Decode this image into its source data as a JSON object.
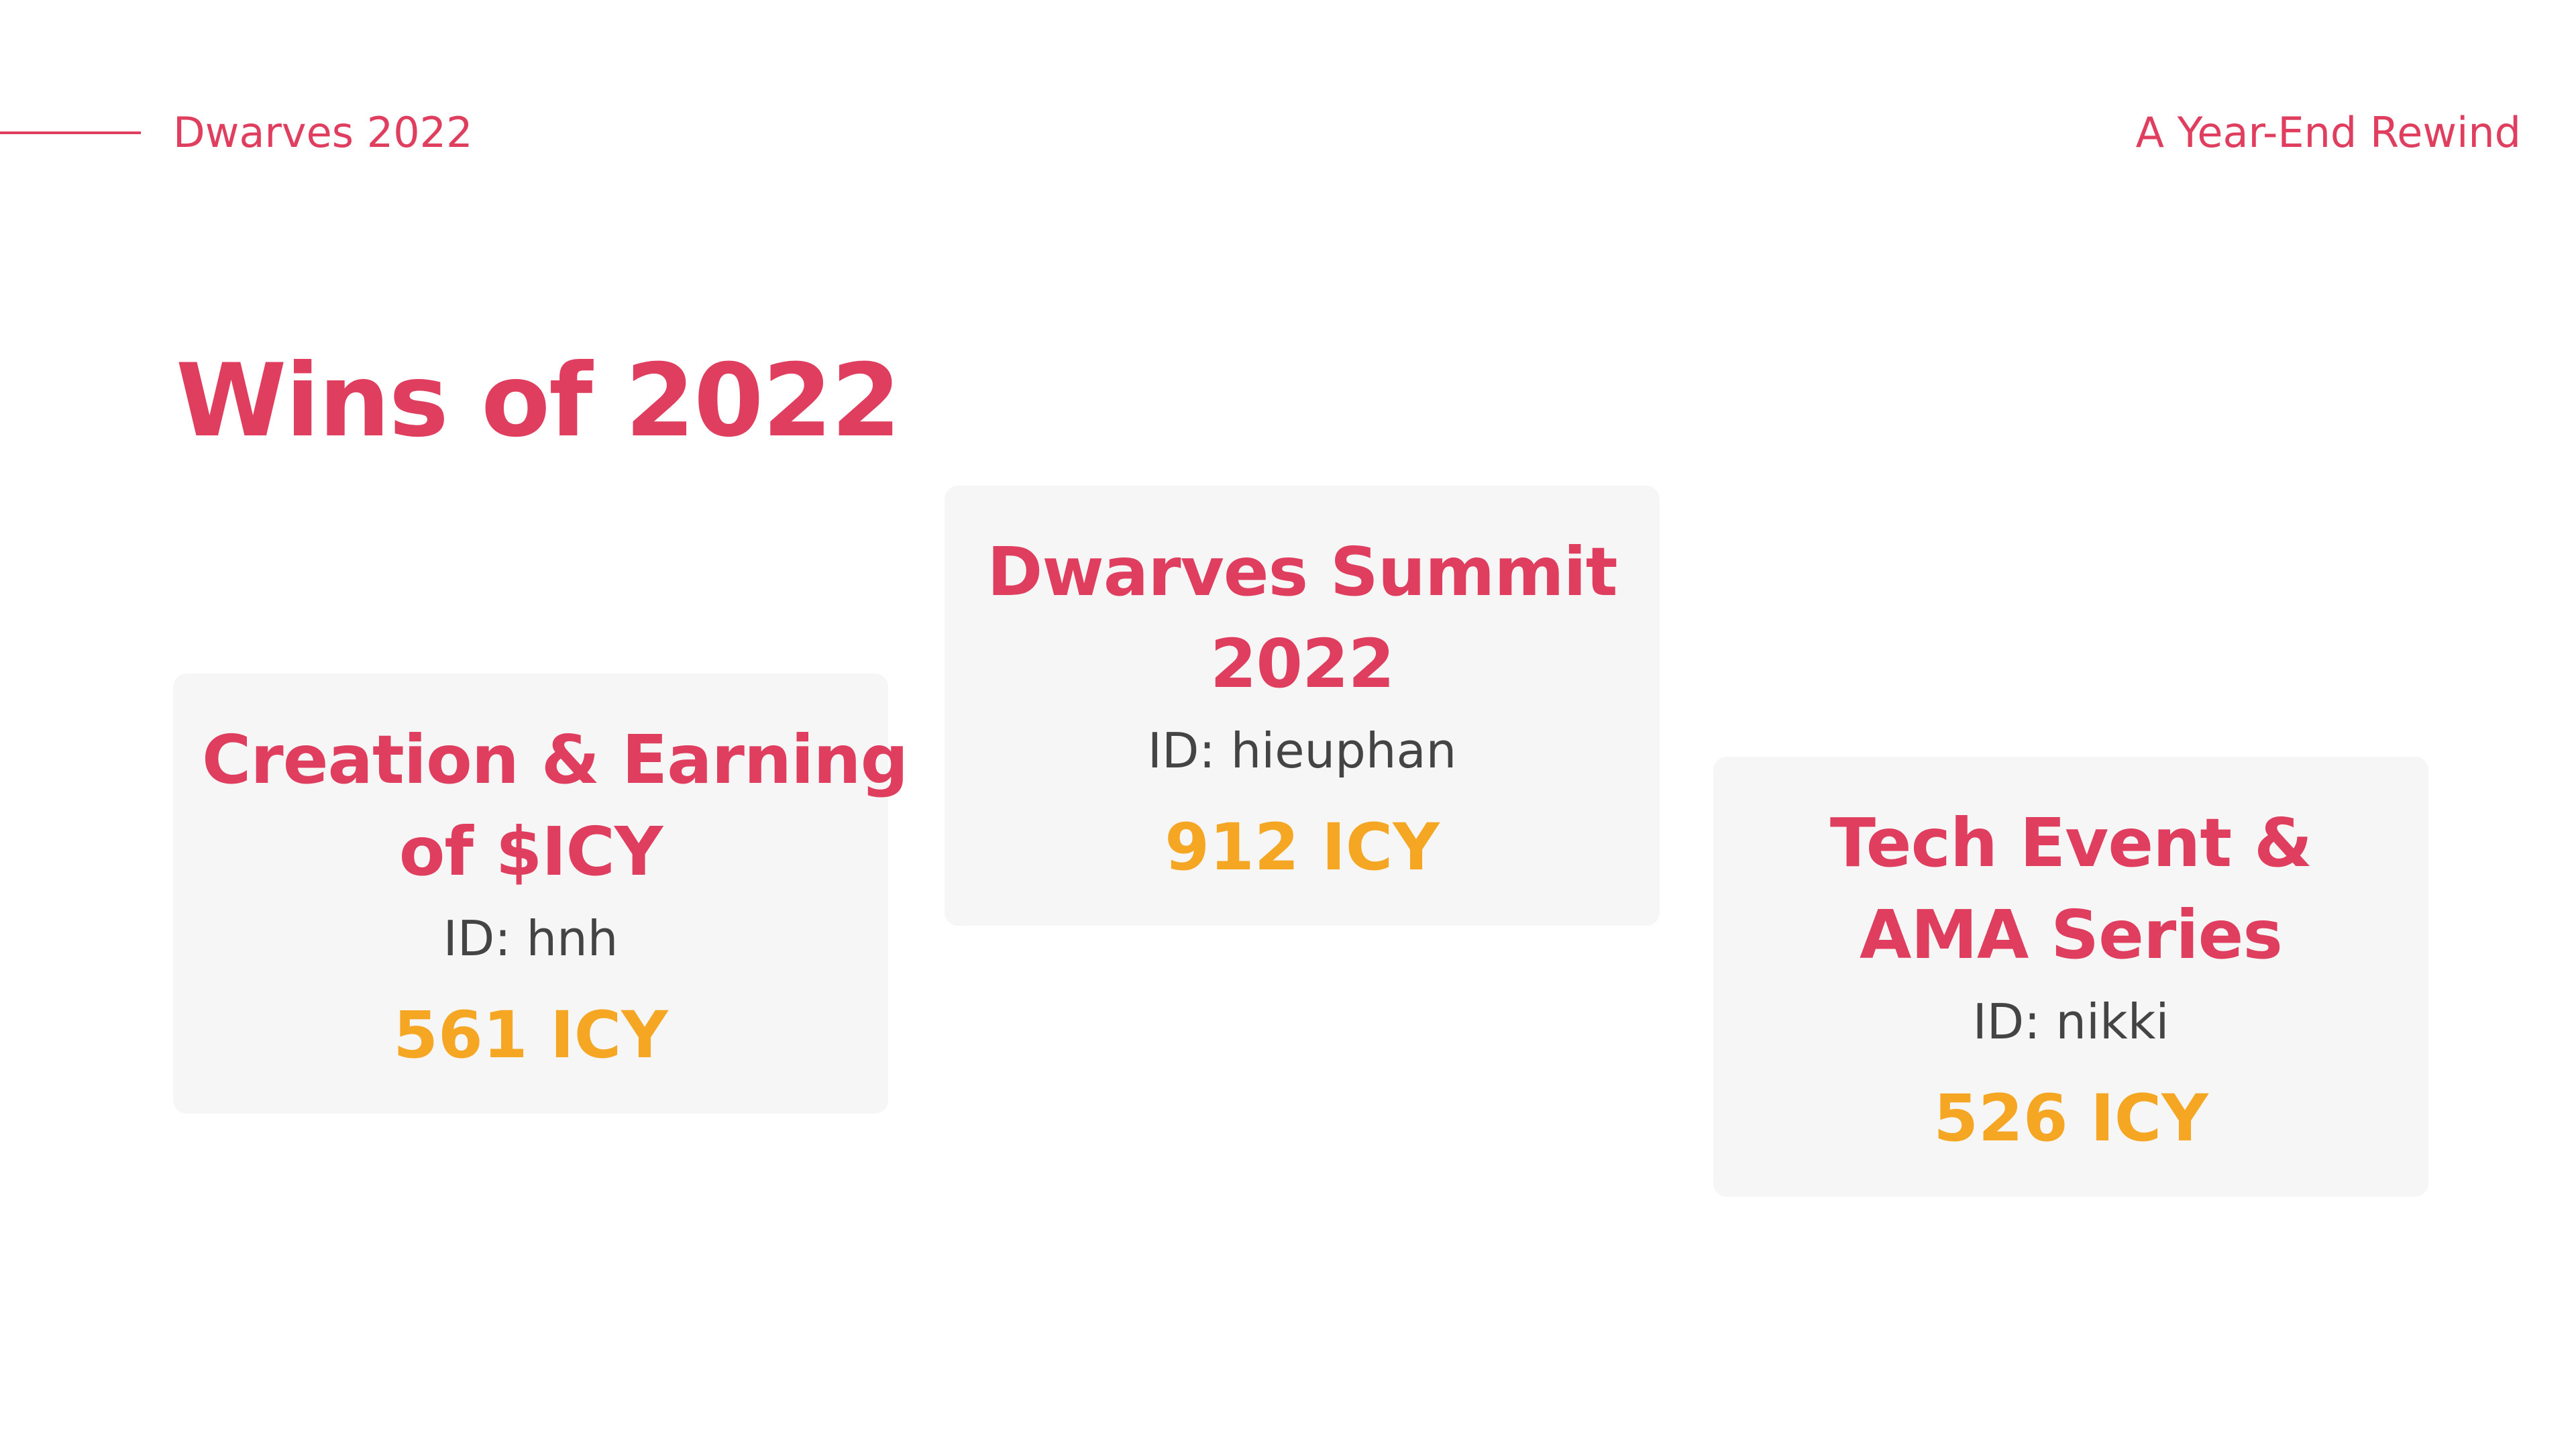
{
  "header": {
    "left_label": "Dwarves 2022",
    "right_label": "A Year-End Rewind"
  },
  "page": {
    "title": "Wins of 2022"
  },
  "colors": {
    "accent": "#e03e5e",
    "amount": "#f5a623",
    "card_bg": "#f6f6f6",
    "id_text": "#444444"
  },
  "cards": [
    {
      "title_lines": [
        "Creation & Earning",
        "of $ICY"
      ],
      "id_label": "ID: hnh",
      "amount": "561 ICY"
    },
    {
      "title_lines": [
        "Dwarves Summit",
        "2022"
      ],
      "id_label": "ID: hieuphan",
      "amount": "912 ICY"
    },
    {
      "title_lines": [
        "Tech Event &",
        "AMA Series"
      ],
      "id_label": "ID: nikki",
      "amount": "526 ICY"
    }
  ]
}
